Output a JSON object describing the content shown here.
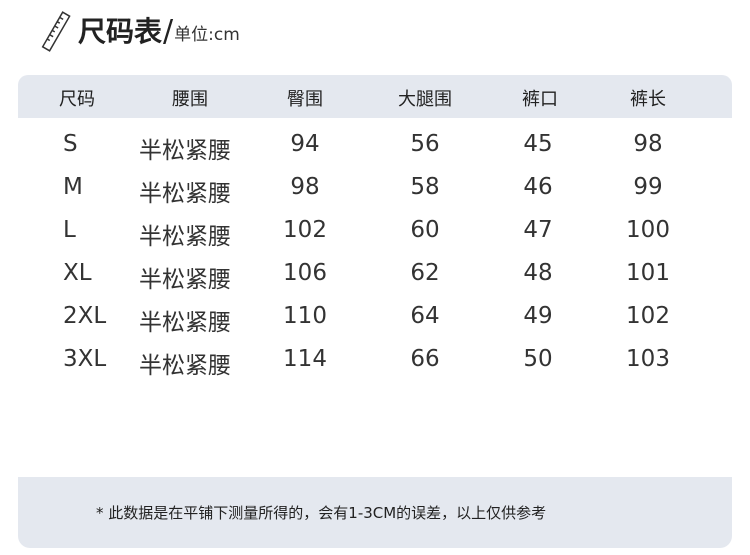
{
  "title": {
    "main": "尺码表",
    "separator": "/",
    "unit": "单位:cm",
    "icon": "ruler-icon"
  },
  "table": {
    "headers": [
      "尺码",
      "腰围",
      "臀围",
      "大腿围",
      "裤口",
      "裤长"
    ],
    "rows": [
      [
        "S",
        "半松紧腰",
        "94",
        "56",
        "45",
        "98"
      ],
      [
        "M",
        "半松紧腰",
        "98",
        "58",
        "46",
        "99"
      ],
      [
        "L",
        "半松紧腰",
        "102",
        "60",
        "47",
        "100"
      ],
      [
        "XL",
        "半松紧腰",
        "106",
        "62",
        "48",
        "101"
      ],
      [
        "2XL",
        "半松紧腰",
        "110",
        "64",
        "49",
        "102"
      ],
      [
        "3XL",
        "半松紧腰",
        "114",
        "66",
        "50",
        "103"
      ]
    ]
  },
  "footer": {
    "note": "* 此数据是在平铺下测量所得的，会有1-3CM的误差，以上仅供参考"
  },
  "colors": {
    "band": "#e4e8ef"
  }
}
